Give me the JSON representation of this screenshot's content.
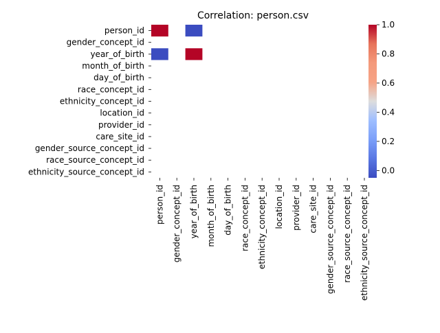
{
  "chart_data": {
    "type": "heatmap",
    "title": "Correlation: person.csv",
    "xlabel": "",
    "ylabel": "",
    "labels": [
      "person_id",
      "gender_concept_id",
      "year_of_birth",
      "month_of_birth",
      "day_of_birth",
      "race_concept_id",
      "ethnicity_concept_id",
      "location_id",
      "provider_id",
      "care_site_id",
      "gender_source_concept_id",
      "race_source_concept_id",
      "ethnicity_source_concept_id"
    ],
    "matrix": [
      [
        1.0,
        null,
        -0.05,
        null,
        null,
        null,
        null,
        null,
        null,
        null,
        null,
        null,
        null
      ],
      [
        null,
        null,
        null,
        null,
        null,
        null,
        null,
        null,
        null,
        null,
        null,
        null,
        null
      ],
      [
        -0.05,
        null,
        1.0,
        null,
        null,
        null,
        null,
        null,
        null,
        null,
        null,
        null,
        null
      ],
      [
        null,
        null,
        null,
        null,
        null,
        null,
        null,
        null,
        null,
        null,
        null,
        null,
        null
      ],
      [
        null,
        null,
        null,
        null,
        null,
        null,
        null,
        null,
        null,
        null,
        null,
        null,
        null
      ],
      [
        null,
        null,
        null,
        null,
        null,
        null,
        null,
        null,
        null,
        null,
        null,
        null,
        null
      ],
      [
        null,
        null,
        null,
        null,
        null,
        null,
        null,
        null,
        null,
        null,
        null,
        null,
        null
      ],
      [
        null,
        null,
        null,
        null,
        null,
        null,
        null,
        null,
        null,
        null,
        null,
        null,
        null
      ],
      [
        null,
        null,
        null,
        null,
        null,
        null,
        null,
        null,
        null,
        null,
        null,
        null,
        null
      ],
      [
        null,
        null,
        null,
        null,
        null,
        null,
        null,
        null,
        null,
        null,
        null,
        null,
        null
      ],
      [
        null,
        null,
        null,
        null,
        null,
        null,
        null,
        null,
        null,
        null,
        null,
        null,
        null
      ],
      [
        null,
        null,
        null,
        null,
        null,
        null,
        null,
        null,
        null,
        null,
        null,
        null,
        null
      ],
      [
        null,
        null,
        null,
        null,
        null,
        null,
        null,
        null,
        null,
        null,
        null,
        null,
        null
      ]
    ],
    "colormap": "coolwarm",
    "vmin": -0.05,
    "vmax": 1.0,
    "colorbar_ticks": [
      "0.0",
      "0.2",
      "0.4",
      "0.6",
      "0.8",
      "1.0"
    ],
    "colorbar_tick_values": [
      0.0,
      0.2,
      0.4,
      0.6,
      0.8,
      1.0
    ],
    "grid": false,
    "colorbar_position": "right"
  }
}
